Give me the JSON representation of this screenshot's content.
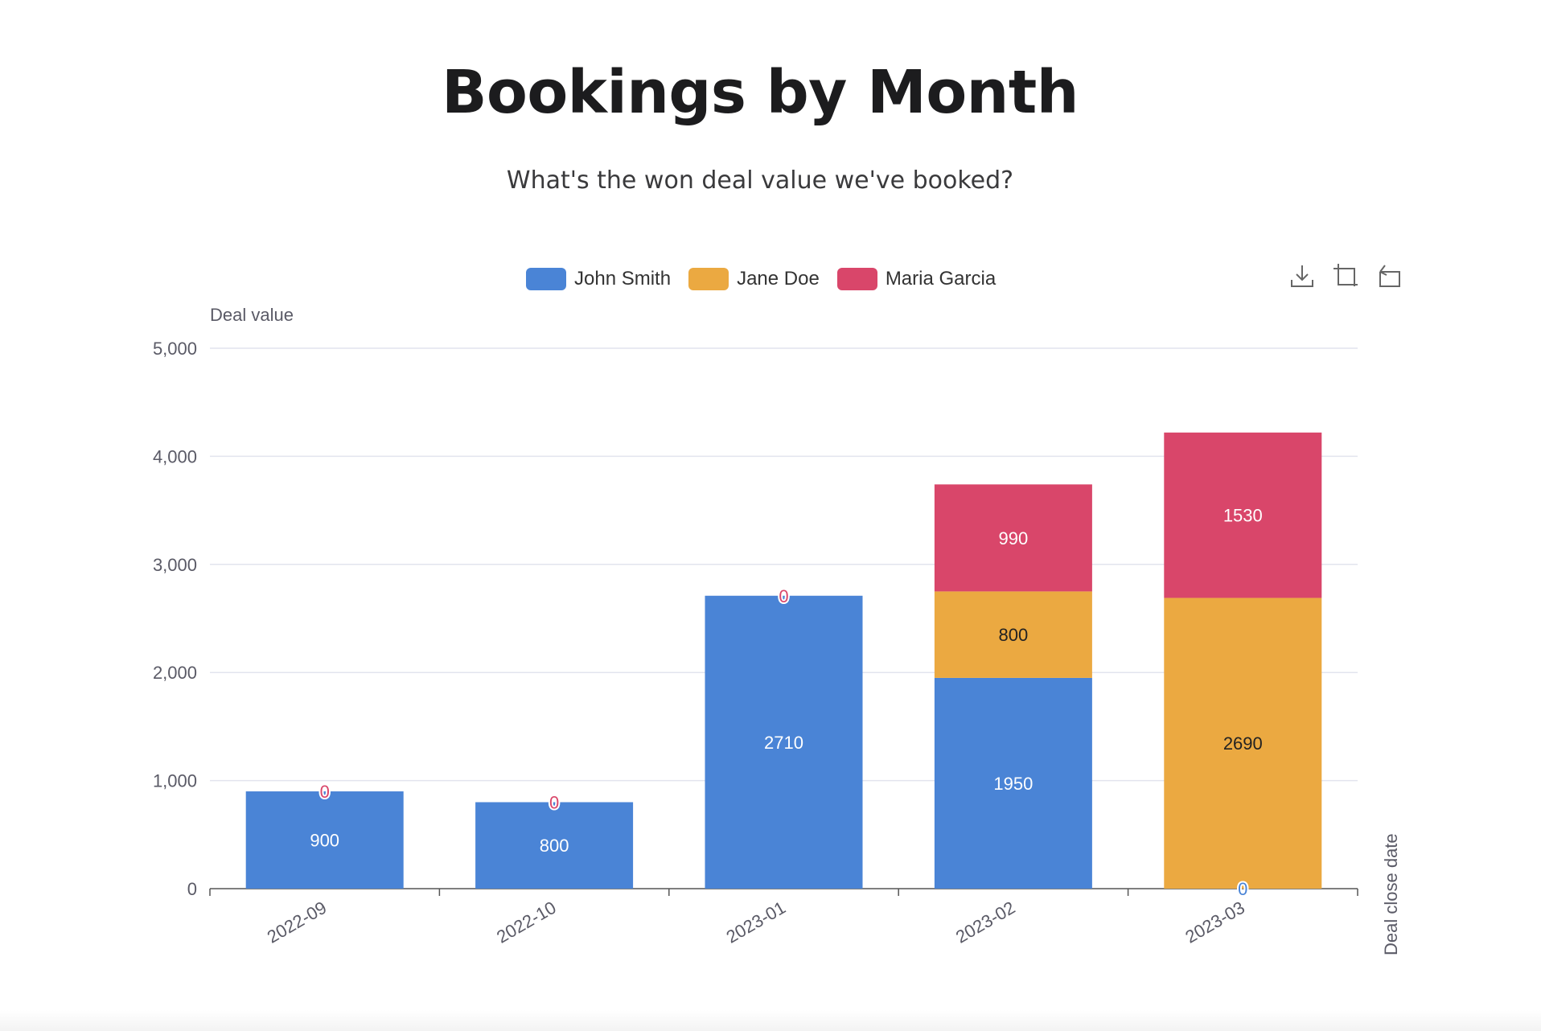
{
  "title": "Bookings by Month",
  "subtitle": "What's the won deal value we've booked?",
  "legend": [
    {
      "name": "John Smith",
      "color": "#4a84d6"
    },
    {
      "name": "Jane Doe",
      "color": "#eba941"
    },
    {
      "name": "Maria Garcia",
      "color": "#d9466a"
    }
  ],
  "toolbox": {
    "icons": [
      "download-icon",
      "zoom-select-icon",
      "reset-icon"
    ]
  },
  "chart_data": {
    "type": "bar",
    "stacked": true,
    "categories": [
      "2022-09",
      "2022-10",
      "2023-01",
      "2023-02",
      "2023-03"
    ],
    "series": [
      {
        "name": "John Smith",
        "color": "#4a84d6",
        "values": [
          900,
          800,
          2710,
          1950,
          0
        ],
        "label_color": "#ffffff"
      },
      {
        "name": "Jane Doe",
        "color": "#eba941",
        "values": [
          0,
          0,
          0,
          800,
          2690
        ],
        "label_color": "#222222"
      },
      {
        "name": "Maria Garcia",
        "color": "#d9466a",
        "values": [
          0,
          0,
          0,
          990,
          1530
        ],
        "label_color": "#ffffff"
      }
    ],
    "zero_markers": [
      {
        "category": "2022-09",
        "series": "Maria Garcia",
        "label": "0"
      },
      {
        "category": "2022-10",
        "series": "Maria Garcia",
        "label": "0"
      },
      {
        "category": "2023-01",
        "series": "Maria Garcia",
        "label": "0"
      },
      {
        "category": "2023-03",
        "series": "John Smith",
        "label": "0"
      }
    ],
    "ylabel": "Deal value",
    "xlabel": "Deal close date",
    "ylim": [
      0,
      5000
    ],
    "yticks": [
      0,
      1000,
      2000,
      3000,
      4000,
      5000
    ],
    "ytick_labels": [
      "0",
      "1,000",
      "2,000",
      "3,000",
      "4,000",
      "5,000"
    ],
    "grid": true,
    "legend_position": "top-center"
  }
}
